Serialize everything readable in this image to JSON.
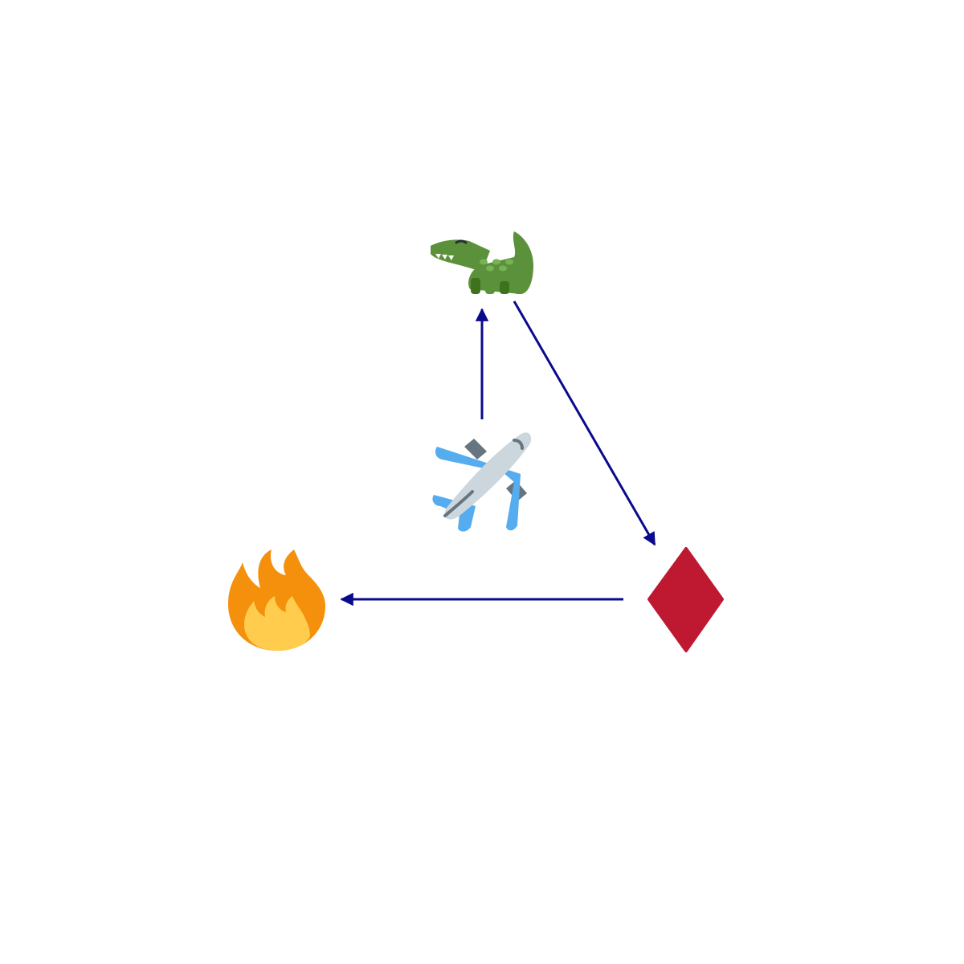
{
  "diagram": {
    "nodes": [
      {
        "id": "airplane",
        "icon": "airplane-icon"
      },
      {
        "id": "crocodile",
        "icon": "crocodile-icon"
      },
      {
        "id": "diamond",
        "icon": "red-diamond-icon"
      },
      {
        "id": "fire",
        "icon": "fire-icon"
      }
    ],
    "edges": [
      {
        "from": "airplane",
        "to": "crocodile"
      },
      {
        "from": "crocodile",
        "to": "diamond"
      },
      {
        "from": "diamond",
        "to": "fire"
      }
    ],
    "colors": {
      "edge": "#0a0a8c",
      "crocodile": "#5c913b",
      "diamond": "#be1931",
      "fire_outer": "#f4900c",
      "fire_inner": "#ffcc4d",
      "plane_body": "#ccd6dd",
      "plane_wing": "#55acee",
      "plane_engine": "#66757f"
    }
  }
}
